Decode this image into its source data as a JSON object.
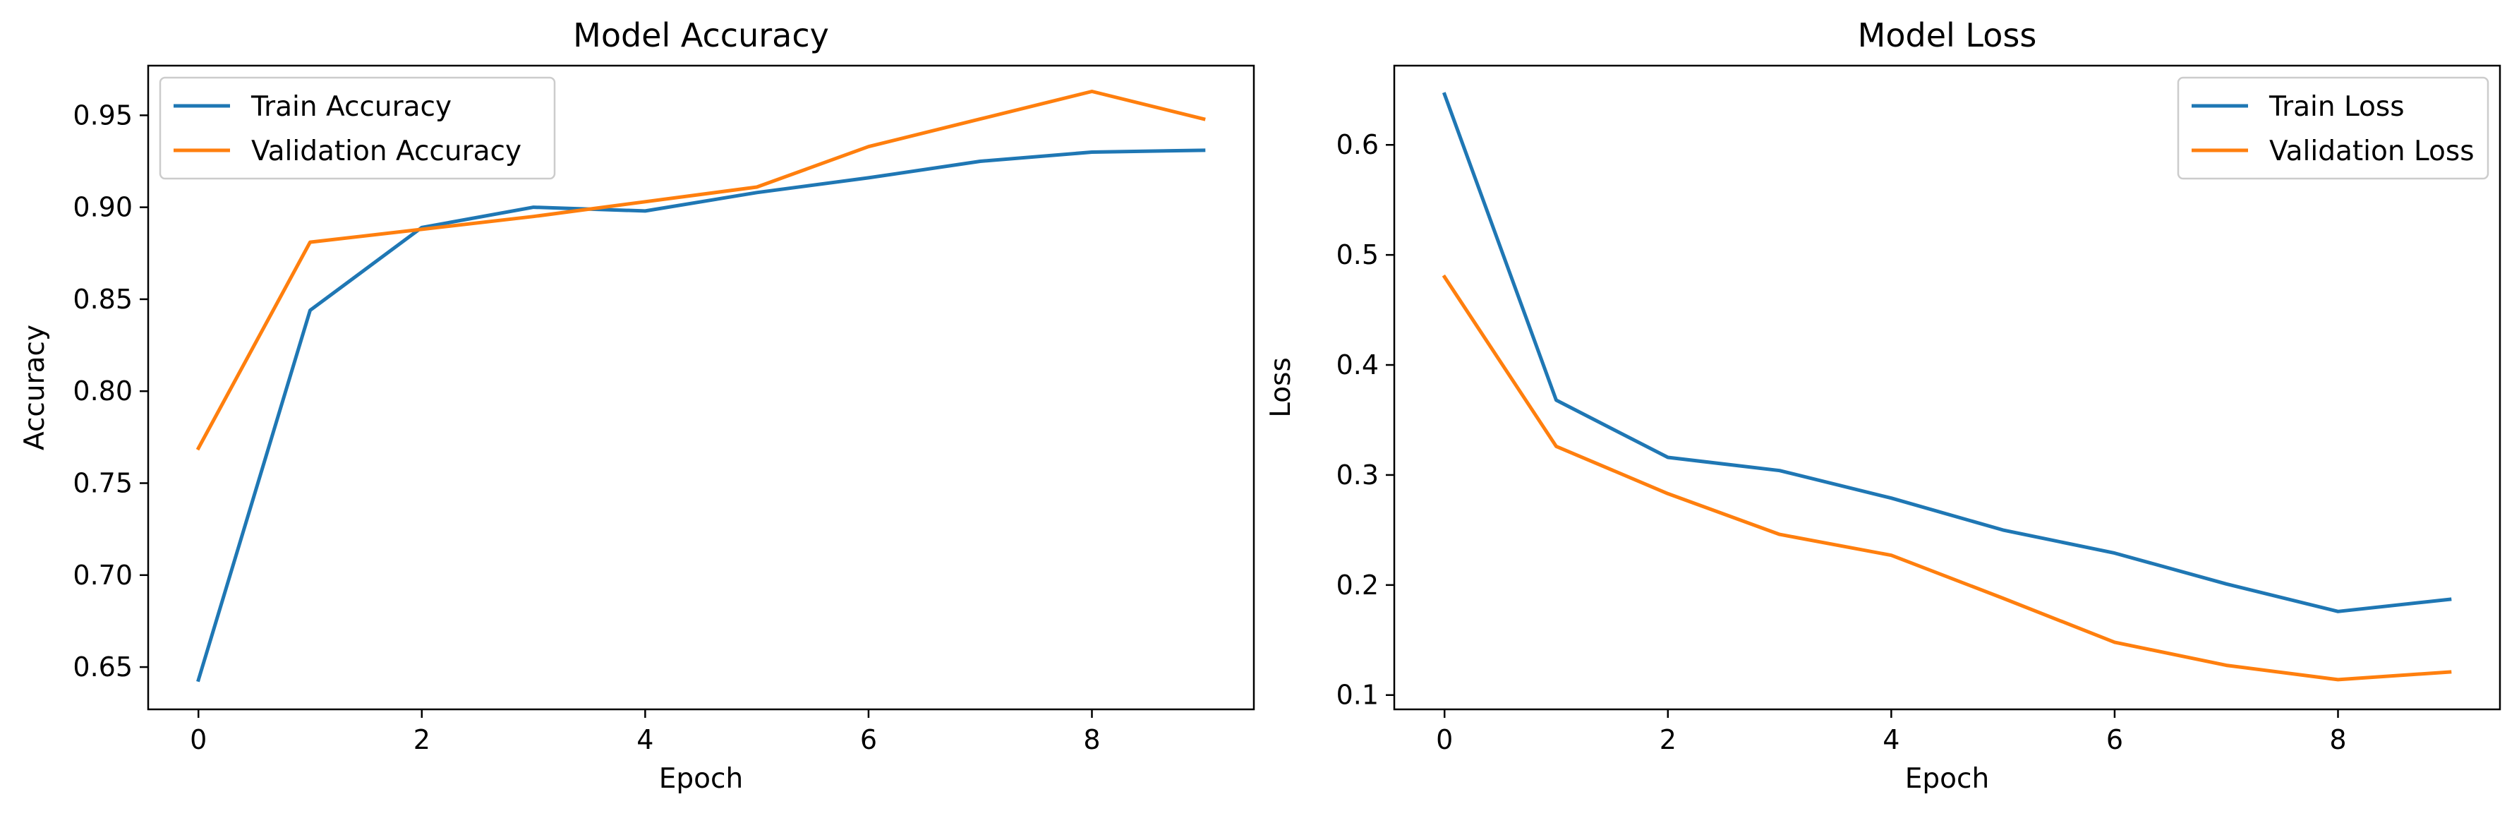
{
  "chart_data": [
    {
      "type": "line",
      "title": "Model Accuracy",
      "xlabel": "Epoch",
      "ylabel": "Accuracy",
      "x": [
        0,
        1,
        2,
        3,
        4,
        5,
        6,
        7,
        8,
        9
      ],
      "xlim": [
        -0.45,
        9.45
      ],
      "ylim": [
        0.627,
        0.977
      ],
      "xticks": [
        0,
        2,
        4,
        6,
        8
      ],
      "xtick_labels": [
        "0",
        "2",
        "4",
        "6",
        "8"
      ],
      "yticks": [
        0.65,
        0.7,
        0.75,
        0.8,
        0.85,
        0.9,
        0.95
      ],
      "ytick_labels": [
        "0.65",
        "0.70",
        "0.75",
        "0.80",
        "0.85",
        "0.90",
        "0.95"
      ],
      "grid": false,
      "legend_position": "upper-left",
      "series": [
        {
          "name": "Train Accuracy",
          "color": "#1f77b4",
          "values": [
            0.643,
            0.844,
            0.889,
            0.9,
            0.898,
            0.908,
            0.916,
            0.925,
            0.93,
            0.931
          ]
        },
        {
          "name": "Validation Accuracy",
          "color": "#ff7f0e",
          "values": [
            0.769,
            0.881,
            0.888,
            0.895,
            0.903,
            0.911,
            0.933,
            0.948,
            0.963,
            0.948
          ]
        }
      ]
    },
    {
      "type": "line",
      "title": "Model Loss",
      "xlabel": "Epoch",
      "ylabel": "Loss",
      "x": [
        0,
        1,
        2,
        3,
        4,
        5,
        6,
        7,
        8,
        9
      ],
      "xlim": [
        -0.45,
        9.45
      ],
      "ylim": [
        0.087,
        0.672
      ],
      "xticks": [
        0,
        2,
        4,
        6,
        8
      ],
      "xtick_labels": [
        "0",
        "2",
        "4",
        "6",
        "8"
      ],
      "yticks": [
        0.1,
        0.2,
        0.3,
        0.4,
        0.5,
        0.6
      ],
      "ytick_labels": [
        "0.1",
        "0.2",
        "0.3",
        "0.4",
        "0.5",
        "0.6"
      ],
      "grid": false,
      "legend_position": "upper-right",
      "series": [
        {
          "name": "Train Loss",
          "color": "#1f77b4",
          "values": [
            0.646,
            0.368,
            0.316,
            0.304,
            0.279,
            0.25,
            0.229,
            0.201,
            0.176,
            0.187
          ]
        },
        {
          "name": "Validation Loss",
          "color": "#ff7f0e",
          "values": [
            0.48,
            0.326,
            0.283,
            0.246,
            0.227,
            0.188,
            0.148,
            0.127,
            0.114,
            0.121
          ]
        }
      ]
    }
  ]
}
